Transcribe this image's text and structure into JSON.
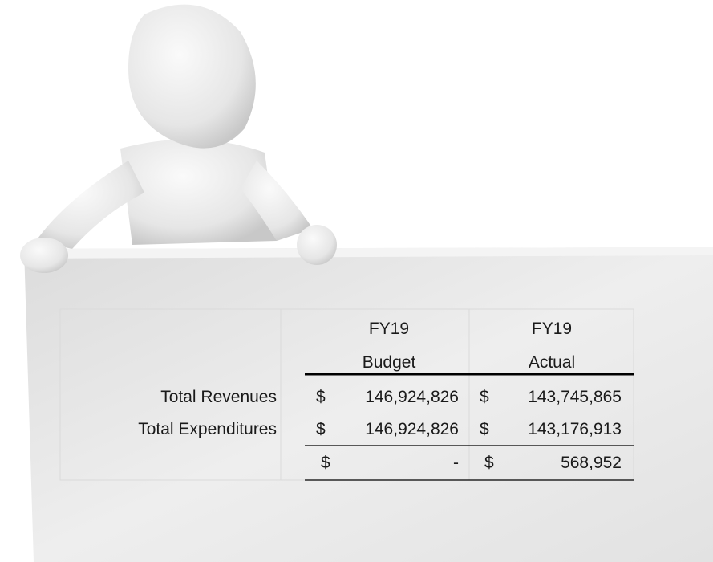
{
  "table": {
    "header": [
      {
        "lines": [
          "FY19",
          "Budget"
        ]
      },
      {
        "lines": [
          "FY19",
          "Actual"
        ]
      }
    ],
    "rows": [
      {
        "label": "Total Revenues",
        "cells": [
          {
            "symbol": "$",
            "amount": "146,924,826"
          },
          {
            "symbol": "$",
            "amount": "143,745,865"
          }
        ]
      },
      {
        "label": "Total Expenditures",
        "cells": [
          {
            "symbol": "$",
            "amount": "146,924,826"
          },
          {
            "symbol": "$",
            "amount": "143,176,913"
          }
        ]
      },
      {
        "label": "",
        "cells": [
          {
            "symbol": "$",
            "amount": "-"
          },
          {
            "symbol": "$",
            "amount": "568,952"
          }
        ]
      }
    ]
  }
}
